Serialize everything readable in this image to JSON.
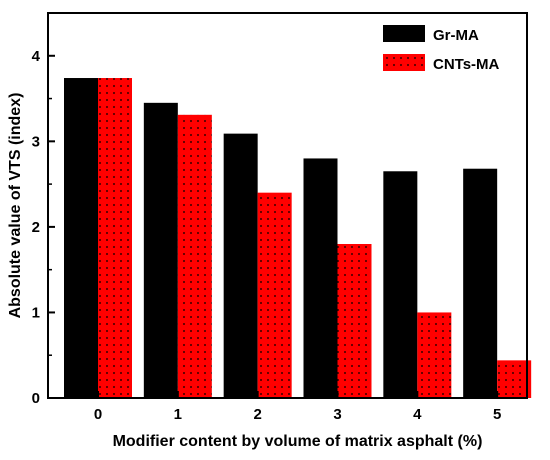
{
  "chart_data": {
    "type": "bar",
    "title": "",
    "xlabel": "Modifier  content  by volume of matrix asphalt (%)",
    "ylabel": "Absolute value of VTS (index)",
    "categories": [
      "0",
      "1",
      "2",
      "3",
      "4",
      "5"
    ],
    "ylim": [
      0,
      4.5
    ],
    "yticks": [
      "0",
      "1",
      "2",
      "3",
      "4"
    ],
    "grid": false,
    "legend_position": "top-right",
    "series": [
      {
        "name": "Gr-MA",
        "values": [
          3.74,
          3.45,
          3.09,
          2.8,
          2.65,
          2.68
        ],
        "color": "#000000",
        "pattern": "solid"
      },
      {
        "name": "CNTs-MA",
        "values": [
          3.74,
          3.31,
          2.4,
          1.8,
          1.0,
          0.44
        ],
        "color": "#ff0000",
        "pattern": "dotted"
      }
    ]
  }
}
